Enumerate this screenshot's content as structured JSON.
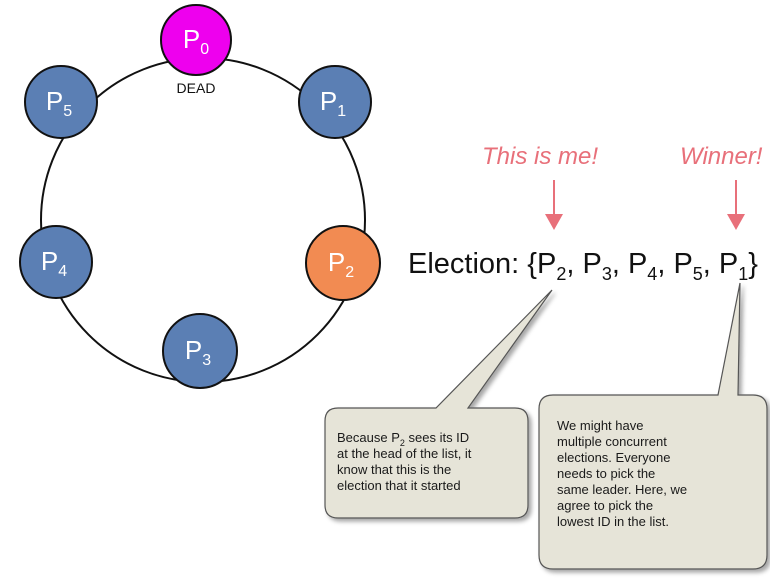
{
  "ring": {
    "nodes": [
      {
        "id": "p0",
        "label": "P",
        "sub": "0",
        "color": "#ee00ee",
        "status": "DEAD"
      },
      {
        "id": "p1",
        "label": "P",
        "sub": "1",
        "color": "#5b7fb4"
      },
      {
        "id": "p2",
        "label": "P",
        "sub": "2",
        "color": "#f28b52"
      },
      {
        "id": "p3",
        "label": "P",
        "sub": "3",
        "color": "#5b7fb4"
      },
      {
        "id": "p4",
        "label": "P",
        "sub": "4",
        "color": "#5b7fb4"
      },
      {
        "id": "p5",
        "label": "P",
        "sub": "5",
        "color": "#5b7fb4"
      }
    ]
  },
  "annotations": {
    "this_is_me": "This is me!",
    "winner": "Winner!",
    "arrow_color": "#e8707a"
  },
  "election": {
    "prefix": "Election: {",
    "items": [
      {
        "label": "P",
        "sub": "2",
        "sep": ", "
      },
      {
        "label": "P",
        "sub": "3",
        "sep": ", "
      },
      {
        "label": "P",
        "sub": "4",
        "sep": ", "
      },
      {
        "label": "P",
        "sub": "5",
        "sep": ", "
      },
      {
        "label": "P",
        "sub": "1",
        "sep": "}"
      }
    ]
  },
  "callouts": {
    "left": {
      "line1_prefix": "Because P",
      "line1_sub": "2",
      "line1_suffix": " sees its ID",
      "line2": "at the head of the list, it",
      "line3": "know that this is the",
      "line4": "election that it started"
    },
    "right": {
      "lines": [
        "We might have",
        "multiple concurrent",
        "elections. Everyone",
        "needs to pick the",
        "same leader. Here, we",
        "agree to pick the",
        "lowest ID in the list."
      ]
    },
    "fill": "#e6e4d8",
    "stroke": "#555555"
  }
}
